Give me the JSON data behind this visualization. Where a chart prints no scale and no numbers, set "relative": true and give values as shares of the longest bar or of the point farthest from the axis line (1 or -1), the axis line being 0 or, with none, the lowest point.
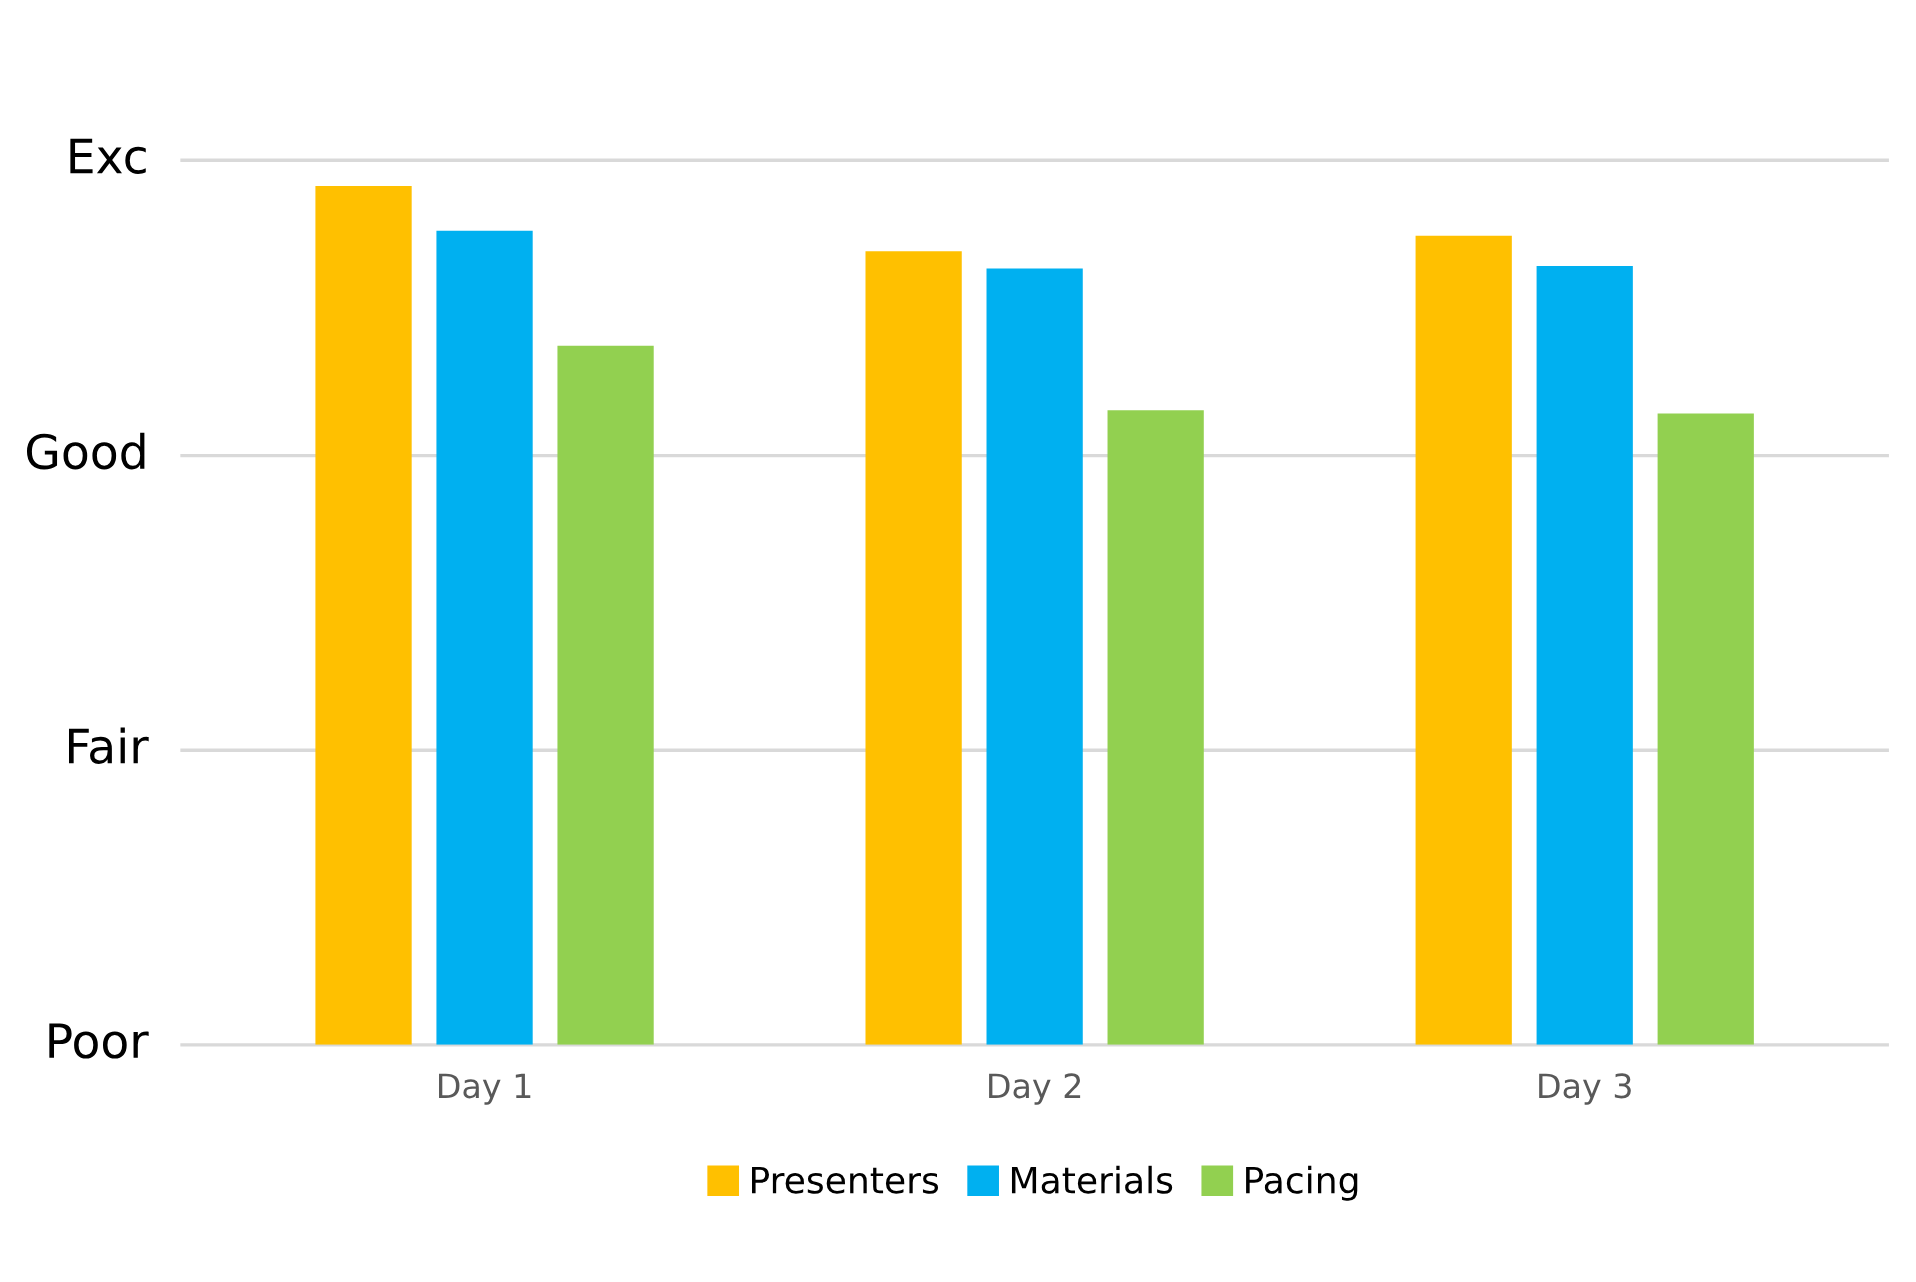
{
  "chart_data": {
    "type": "bar",
    "categories": [
      "Day 1",
      "Day 2",
      "Day 3"
    ],
    "series": [
      {
        "name": "Presenters",
        "color": "#ffc000",
        "values": [
          1,
          0.924,
          0.942
        ]
      },
      {
        "name": "Materials",
        "color": "#00b0f0",
        "values": [
          0.948,
          0.904,
          0.907
        ]
      },
      {
        "name": "Pacing",
        "color": "#92d050",
        "values": [
          0.814,
          0.739,
          0.735
        ]
      }
    ],
    "relative": true,
    "ref_lines": [
      {
        "axis": "y",
        "value": 0,
        "label": "Poor",
        "color": "#d9d9d9"
      },
      {
        "axis": "y",
        "value": 0.343,
        "label": "Fair",
        "color": "#d9d9d9"
      },
      {
        "axis": "y",
        "value": 0.686,
        "label": "Good",
        "color": "#d9d9d9"
      },
      {
        "axis": "y",
        "value": 1.03,
        "label": "Exc",
        "color": "#d9d9d9"
      }
    ],
    "legend": "bottom"
  }
}
